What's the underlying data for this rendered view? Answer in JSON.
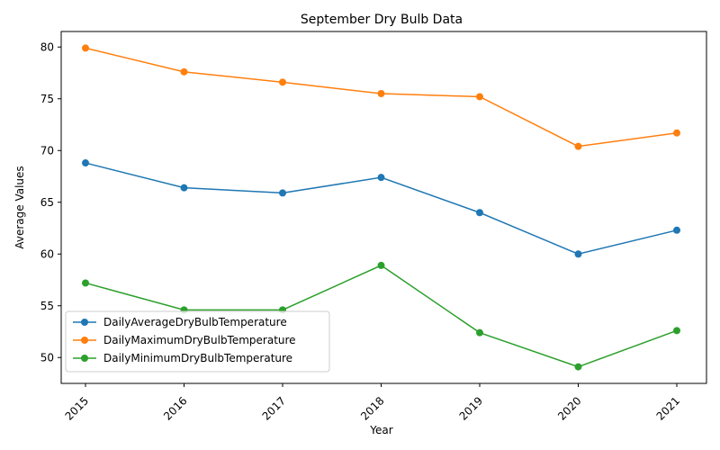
{
  "chart_data": {
    "type": "line",
    "title": "September Dry Bulb Data",
    "xlabel": "Year",
    "ylabel": "Average Values",
    "categories": [
      "2015",
      "2016",
      "2017",
      "2018",
      "2019",
      "2020",
      "2021"
    ],
    "ylim": [
      47.5,
      81.5
    ],
    "yticks": [
      50,
      55,
      60,
      65,
      70,
      75,
      80
    ],
    "grid": false,
    "legend_position": "lower-left",
    "xtick_rotation": 45,
    "markers": true,
    "series": [
      {
        "name": "DailyAverageDryBulbTemperature",
        "color": "#1f77b4",
        "values": [
          68.8,
          66.4,
          65.9,
          67.4,
          64.0,
          60.0,
          62.3
        ]
      },
      {
        "name": "DailyMaximumDryBulbTemperature",
        "color": "#ff7f0e",
        "values": [
          79.9,
          77.6,
          76.6,
          75.5,
          75.2,
          70.4,
          71.7
        ]
      },
      {
        "name": "DailyMinimumDryBulbTemperature",
        "color": "#2ca02c",
        "values": [
          57.2,
          54.6,
          54.6,
          58.9,
          52.4,
          49.1,
          52.6
        ]
      }
    ]
  }
}
